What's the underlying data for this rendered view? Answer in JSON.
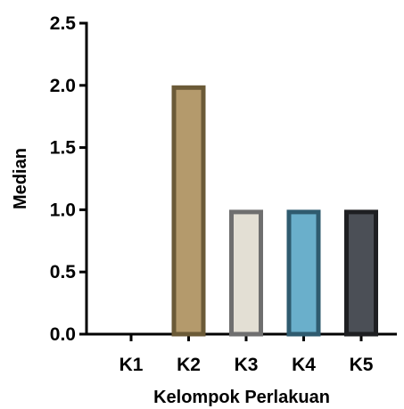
{
  "chart_data": {
    "type": "bar",
    "title": "",
    "xlabel": "Kelompok Perlakuan",
    "ylabel": "Median",
    "categories": [
      "K1",
      "K2",
      "K3",
      "K4",
      "K5"
    ],
    "values": [
      0,
      2,
      1,
      1,
      1
    ],
    "ylim": [
      0,
      2.5
    ],
    "yticks": [
      "0.0",
      "0.5",
      "1.0",
      "1.5",
      "2.0",
      "2.5"
    ],
    "grid": false,
    "legend": "none",
    "bar_fill_colors": [
      "#ffffff",
      "#b49a6c",
      "#e3dfd4",
      "#6aafcb",
      "#4b4f56"
    ],
    "bar_edge_colors": [
      "#000000",
      "#6b5a37",
      "#6f6f6f",
      "#2f5b6f",
      "#1e1f22"
    ]
  }
}
